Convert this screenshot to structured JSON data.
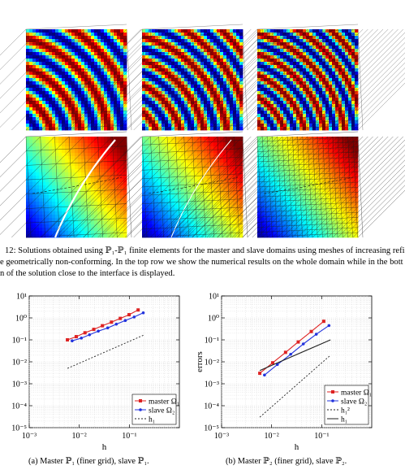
{
  "figure_caption": {
    "lines": [
      "12: Solutions obtained using ℙ₁-ℙ₁ finite elements for the master and slave domains using meshes of increasing refi",
      "e geometrically non-conforming. In the top row we show the numerical results on the whole domain while in the bott",
      "n of the solution close to the interface is displayed."
    ]
  },
  "panels": [
    {
      "kind": "stripes",
      "spacing": 34,
      "mesh": "coarse"
    },
    {
      "kind": "stripes",
      "spacing": 28,
      "mesh": "medium"
    },
    {
      "kind": "stripes",
      "spacing": 24,
      "mesh": "fine"
    },
    {
      "kind": "zoom",
      "mesh": "coarse",
      "gap": "wide"
    },
    {
      "kind": "zoom",
      "mesh": "medium",
      "gap": "thin"
    },
    {
      "kind": "zoom",
      "mesh": "fine",
      "gap": "none"
    }
  ],
  "colors": {
    "red": "#dd2222",
    "blue": "#2233dd",
    "ref": "#222222"
  },
  "chart_data": [
    {
      "type": "line",
      "caption": "(a)  Master ℙ₁ (finer grid), slave ℙ₁.",
      "xlabel": "h",
      "ylabel": "",
      "xscale": "log",
      "yscale": "log",
      "xlim": [
        0.001,
        1
      ],
      "ylim": [
        1e-05,
        10
      ],
      "xticks": [
        {
          "v": 0.001,
          "label": "10⁻³"
        },
        {
          "v": 0.01,
          "label": "10⁻²"
        },
        {
          "v": 0.1,
          "label": "10⁻¹"
        }
      ],
      "yticks": [
        {
          "v": 10,
          "label": "10¹"
        },
        {
          "v": 1,
          "label": "10⁰"
        },
        {
          "v": 0.1,
          "label": "10⁻¹"
        },
        {
          "v": 0.01,
          "label": "10⁻²"
        },
        {
          "v": 0.001,
          "label": "10⁻³"
        },
        {
          "v": 0.0001,
          "label": "10⁻⁴"
        },
        {
          "v": 1e-05,
          "label": "10⁻⁵"
        }
      ],
      "legend_position": "bottom-right",
      "series": [
        {
          "name": "master Ω₁",
          "color": "#dd2222",
          "dash": "",
          "marker": "square",
          "x": [
            0.0058,
            0.0087,
            0.013,
            0.0195,
            0.029,
            0.044,
            0.066,
            0.099,
            0.15
          ],
          "y": [
            0.1,
            0.14,
            0.21,
            0.3,
            0.44,
            0.64,
            0.95,
            1.4,
            2.3
          ]
        },
        {
          "name": "slave Ω₂",
          "color": "#2233dd",
          "dash": "",
          "marker": "circle",
          "x": [
            0.0072,
            0.011,
            0.016,
            0.024,
            0.037,
            0.055,
            0.083,
            0.125,
            0.19
          ],
          "y": [
            0.09,
            0.12,
            0.17,
            0.25,
            0.35,
            0.52,
            0.76,
            1.1,
            1.7
          ]
        },
        {
          "name": "h₁",
          "color": "#222222",
          "dash": "2,2",
          "marker": "none",
          "x": [
            0.0058,
            0.2
          ],
          "y": [
            0.005,
            0.17
          ]
        }
      ]
    },
    {
      "type": "line",
      "caption": "(b)  Master ℙ₂ (finer grid), slave ℙ₂.",
      "xlabel": "h",
      "ylabel": "errors",
      "xscale": "log",
      "yscale": "log",
      "xlim": [
        0.001,
        1
      ],
      "ylim": [
        1e-05,
        10
      ],
      "xticks": [
        {
          "v": 0.001,
          "label": "10⁻³"
        },
        {
          "v": 0.01,
          "label": "10⁻²"
        },
        {
          "v": 0.1,
          "label": "10⁻¹"
        }
      ],
      "yticks": [
        {
          "v": 10,
          "label": "10¹"
        },
        {
          "v": 1,
          "label": "10⁰"
        },
        {
          "v": 0.1,
          "label": "10⁻¹"
        },
        {
          "v": 0.01,
          "label": "10⁻²"
        },
        {
          "v": 0.001,
          "label": "10⁻³"
        },
        {
          "v": 0.0001,
          "label": "10⁻⁴"
        },
        {
          "v": 1e-05,
          "label": "10⁻⁵"
        }
      ],
      "legend_position": "bottom-right",
      "series": [
        {
          "name": "master Ω₁",
          "color": "#dd2222",
          "dash": "",
          "marker": "square",
          "x": [
            0.0058,
            0.0105,
            0.019,
            0.034,
            0.062,
            0.11
          ],
          "y": [
            0.003,
            0.009,
            0.027,
            0.08,
            0.24,
            0.7
          ]
        },
        {
          "name": "slave Ω₂",
          "color": "#2233dd",
          "dash": "",
          "marker": "circle",
          "x": [
            0.0072,
            0.013,
            0.024,
            0.043,
            0.078,
            0.14
          ],
          "y": [
            0.0025,
            0.0075,
            0.022,
            0.065,
            0.18,
            0.45
          ]
        },
        {
          "name": "h₁²",
          "color": "#222222",
          "dash": "2,2",
          "marker": "none",
          "x": [
            0.0058,
            0.15
          ],
          "y": [
            3e-05,
            0.02
          ]
        },
        {
          "name": "h₁",
          "color": "#222222",
          "dash": "",
          "marker": "none",
          "x": [
            0.0058,
            0.15
          ],
          "y": [
            0.004,
            0.1
          ]
        }
      ]
    }
  ]
}
